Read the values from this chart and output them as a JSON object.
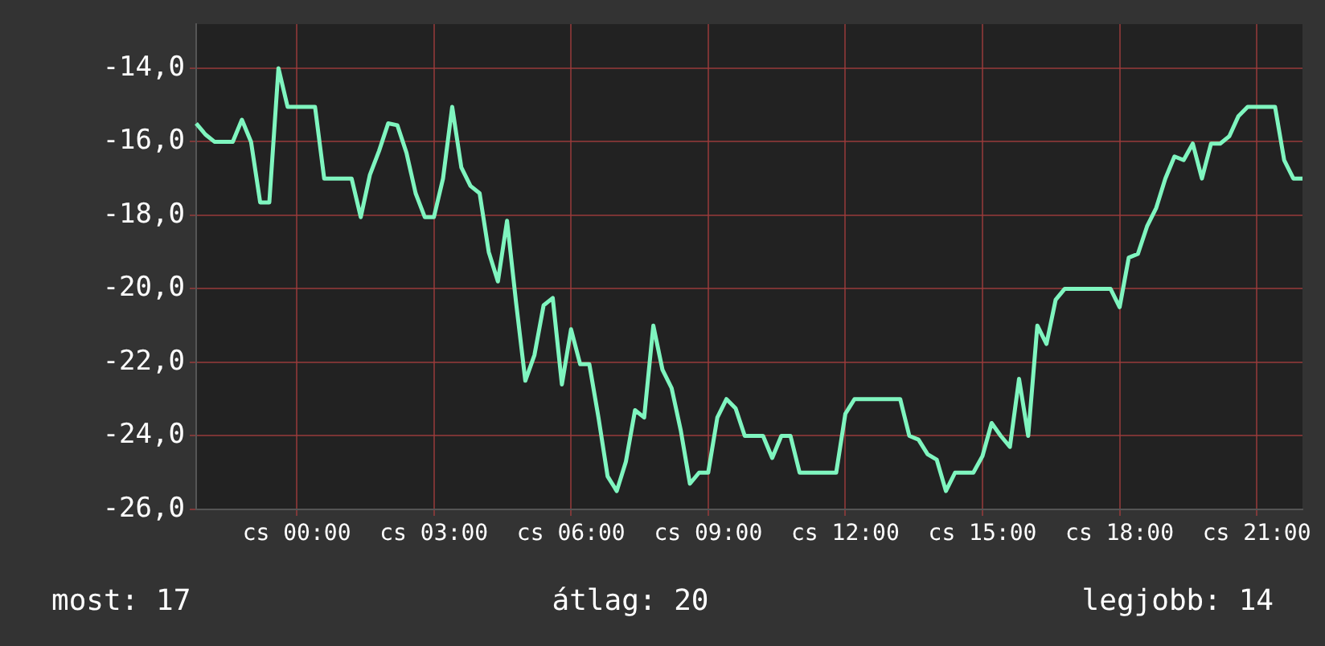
{
  "chart_data": {
    "type": "line",
    "categories": [
      null,
      null,
      null,
      null,
      null,
      null,
      null,
      null,
      null,
      null,
      null,
      "cs 00:00",
      null,
      null,
      null,
      null,
      null,
      null,
      null,
      null,
      null,
      null,
      null,
      null,
      null,
      null,
      "cs 03:00",
      null,
      null,
      null,
      null,
      null,
      null,
      null,
      null,
      null,
      null,
      null,
      null,
      null,
      null,
      "cs 06:00",
      null,
      null,
      null,
      null,
      null,
      null,
      null,
      null,
      null,
      null,
      null,
      null,
      null,
      null,
      "cs 09:00",
      null,
      null,
      null,
      null,
      null,
      null,
      null,
      null,
      null,
      null,
      null,
      null,
      null,
      null,
      "cs 12:00",
      null,
      null,
      null,
      null,
      null,
      null,
      null,
      null,
      null,
      null,
      null,
      null,
      null,
      null,
      "cs 15:00",
      null,
      null,
      null,
      null,
      null,
      null,
      null,
      null,
      null,
      null,
      null,
      null,
      null,
      null,
      "cs 18:00",
      null,
      null,
      null,
      null,
      null,
      null,
      null,
      null,
      null,
      null,
      null,
      null,
      null,
      null,
      "cs 21:00",
      null,
      null,
      null,
      null,
      null
    ],
    "series": [
      {
        "color": "#7ff5bf",
        "values": [
          -15.5,
          -15.8,
          -16,
          -16,
          -16,
          -15.4,
          -16,
          -17.65,
          -17.65,
          -14,
          -15.05,
          -15.05,
          -15.05,
          -15.05,
          -17,
          -17,
          -17,
          -17,
          -18.05,
          -16.9,
          -16.25,
          -15.5,
          -15.55,
          -16.3,
          -17.4,
          -18.05,
          -18.05,
          -17,
          -15.05,
          -16.7,
          -17.2,
          -17.4,
          -19,
          -19.8,
          -18.15,
          -20.4,
          -22.5,
          -21.8,
          -20.45,
          -20.25,
          -22.6,
          -21.1,
          -22.05,
          -22.05,
          -23.5,
          -25.1,
          -25.5,
          -24.7,
          -23.3,
          -23.5,
          -21,
          -22.2,
          -22.7,
          -23.85,
          -25.3,
          -25,
          -25,
          -23.5,
          -23,
          -23.25,
          -24,
          -24,
          -24,
          -24.6,
          -24,
          -24,
          -25,
          -25,
          -25,
          -25,
          -25,
          -23.4,
          -23,
          -23,
          -23,
          -23,
          -23,
          -23,
          -24,
          -24.1,
          -24.5,
          -24.65,
          -25.5,
          -25,
          -25,
          -25,
          -24.55,
          -23.65,
          -24,
          -24.3,
          -22.45,
          -24,
          -21,
          -21.5,
          -20.3,
          -20,
          -20,
          -20,
          -20,
          -20,
          -20,
          -20.5,
          -19.15,
          -19.05,
          -18.3,
          -17.8,
          -17,
          -16.4,
          -16.5,
          -16.05,
          -17,
          -16.05,
          -16.05,
          -15.85,
          -15.3,
          -15.05,
          -15.05,
          -15.05,
          -15.05,
          -16.5,
          -17,
          -17
        ]
      }
    ],
    "ylim": [
      -26,
      -12.8
    ],
    "yticks": [
      {
        "value": -26,
        "label": "-26,0"
      },
      {
        "value": -24,
        "label": "-24,0"
      },
      {
        "value": -22,
        "label": "-22,0"
      },
      {
        "value": -20,
        "label": "-20,0"
      },
      {
        "value": -18,
        "label": "-18,0"
      },
      {
        "value": -16,
        "label": "-16,0"
      },
      {
        "value": -14,
        "label": "-14,0"
      }
    ],
    "grid": true,
    "legend": false,
    "annotations": [
      "most: 17",
      "átlag: 20",
      "legjobb: 14"
    ]
  }
}
